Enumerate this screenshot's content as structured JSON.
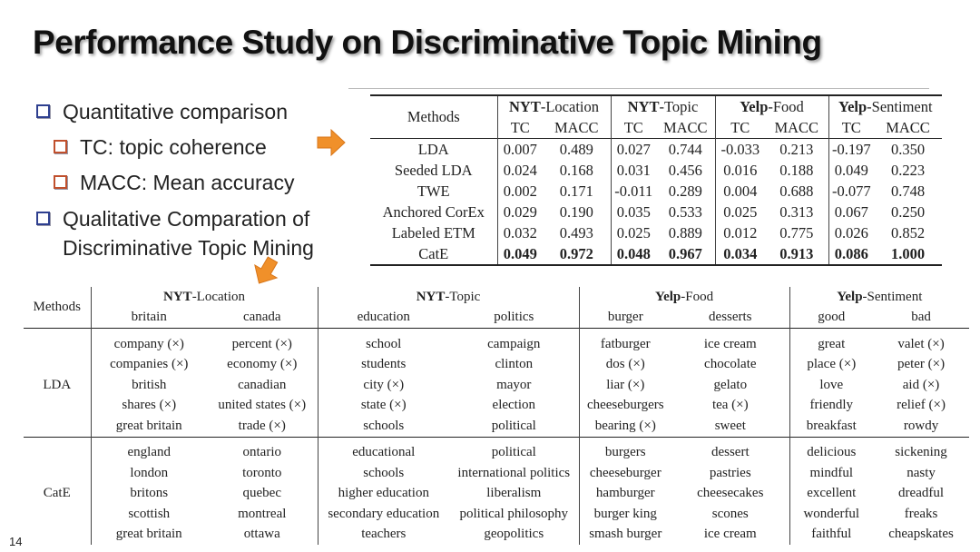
{
  "title": "Performance Study on Discriminative Topic Mining",
  "bullets": {
    "b1": "Quantitative comparison",
    "b1a": "TC: topic coherence",
    "b1b": "MACC: Mean accuracy",
    "b2_line1": "Qualitative Comparation of",
    "b2_line2": "Discriminative Topic Mining"
  },
  "icons": {
    "arrow": "orange-arrow-icon",
    "arrow_color": "#f0902a"
  },
  "table1": {
    "methods_label": "Methods",
    "groups": [
      {
        "bold": "NYT",
        "rest": "-Location"
      },
      {
        "bold": "NYT",
        "rest": "-Topic"
      },
      {
        "bold": "Yelp",
        "rest": "-Food"
      },
      {
        "bold": "Yelp",
        "rest": "-Sentiment"
      }
    ],
    "sub": [
      "TC",
      "MACC",
      "TC",
      "MACC",
      "TC",
      "MACC",
      "TC",
      "MACC"
    ],
    "rows": [
      {
        "method": "LDA",
        "values": [
          "0.007",
          "0.489",
          "0.027",
          "0.744",
          "-0.033",
          "0.213",
          "-0.197",
          "0.350"
        ]
      },
      {
        "method": "Seeded LDA",
        "values": [
          "0.024",
          "0.168",
          "0.031",
          "0.456",
          "0.016",
          "0.188",
          "0.049",
          "0.223"
        ]
      },
      {
        "method": "TWE",
        "values": [
          "0.002",
          "0.171",
          "-0.011",
          "0.289",
          "0.004",
          "0.688",
          "-0.077",
          "0.748"
        ]
      },
      {
        "method": "Anchored CorEx",
        "values": [
          "0.029",
          "0.190",
          "0.035",
          "0.533",
          "0.025",
          "0.313",
          "0.067",
          "0.250"
        ]
      },
      {
        "method": "Labeled ETM",
        "values": [
          "0.032",
          "0.493",
          "0.025",
          "0.889",
          "0.012",
          "0.775",
          "0.026",
          "0.852"
        ]
      },
      {
        "method": "CatE",
        "values": [
          "0.049",
          "0.972",
          "0.048",
          "0.967",
          "0.034",
          "0.913",
          "0.086",
          "1.000"
        ]
      }
    ]
  },
  "table2": {
    "methods_label": "Methods",
    "groups": [
      {
        "bold": "NYT",
        "rest": "-Location"
      },
      {
        "bold": "NYT",
        "rest": "-Topic"
      },
      {
        "bold": "Yelp",
        "rest": "-Food"
      },
      {
        "bold": "Yelp",
        "rest": "-Sentiment"
      }
    ],
    "sub": [
      "britain",
      "canada",
      "education",
      "politics",
      "burger",
      "desserts",
      "good",
      "bad"
    ],
    "lda_label": "LDA",
    "cate_label": "CatE",
    "lda_rows": [
      [
        "company (×)",
        "percent (×)",
        "school",
        "campaign",
        "fatburger",
        "ice cream",
        "great",
        "valet (×)"
      ],
      [
        "companies (×)",
        "economy (×)",
        "students",
        "clinton",
        "dos (×)",
        "chocolate",
        "place (×)",
        "peter (×)"
      ],
      [
        "british",
        "canadian",
        "city (×)",
        "mayor",
        "liar (×)",
        "gelato",
        "love",
        "aid (×)"
      ],
      [
        "shares (×)",
        "united states (×)",
        "state (×)",
        "election",
        "cheeseburgers",
        "tea (×)",
        "friendly",
        "relief (×)"
      ],
      [
        "great britain",
        "trade (×)",
        "schools",
        "political",
        "bearing (×)",
        "sweet",
        "breakfast",
        "rowdy"
      ]
    ],
    "cate_rows": [
      [
        "england",
        "ontario",
        "educational",
        "political",
        "burgers",
        "dessert",
        "delicious",
        "sickening"
      ],
      [
        "london",
        "toronto",
        "schools",
        "international politics",
        "cheeseburger",
        "pastries",
        "mindful",
        "nasty"
      ],
      [
        "britons",
        "quebec",
        "higher education",
        "liberalism",
        "hamburger",
        "cheesecakes",
        "excellent",
        "dreadful"
      ],
      [
        "scottish",
        "montreal",
        "secondary education",
        "political philosophy",
        "burger king",
        "scones",
        "wonderful",
        "freaks"
      ],
      [
        "great britain",
        "ottawa",
        "teachers",
        "geopolitics",
        "smash burger",
        "ice cream",
        "faithful",
        "cheapskates"
      ]
    ]
  },
  "page_number": "14"
}
